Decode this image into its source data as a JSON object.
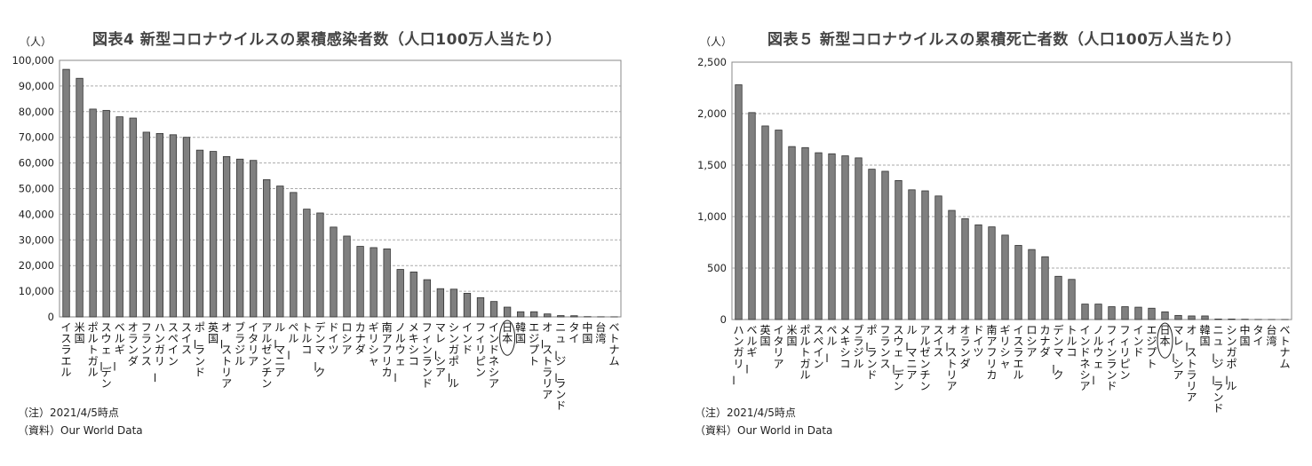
{
  "chart_data": [
    {
      "type": "bar",
      "title": "図表4 新型コロナウイルスの累積感染者数（人口100万人当たり）",
      "ylabel": "（人）",
      "ylim": [
        0,
        100000
      ],
      "yticks": [
        "0",
        "10,000",
        "20,000",
        "30,000",
        "40,000",
        "50,000",
        "60,000",
        "70,000",
        "80,000",
        "90,000",
        "100,000"
      ],
      "grid": true,
      "categories": [
        "イスラエル",
        "米国",
        "ポルトガル",
        "スウェーデン",
        "ベルギー",
        "オランダ",
        "フランス",
        "ハンガリー",
        "スペイン",
        "スイス",
        "ポーランド",
        "英国",
        "オーストリア",
        "ブラジル",
        "イタリア",
        "アルゼンチン",
        "ルーマニア",
        "ペルー",
        "トルコ",
        "デンマーク",
        "ドイツ",
        "ロシア",
        "カナダ",
        "ギリシャ",
        "南アフリカ",
        "ノルウェー",
        "メキシコ",
        "フィンランド",
        "マレーシア",
        "シンガポール",
        "インド",
        "フィリピン",
        "インドネシア",
        "日本",
        "韓国",
        "エジプト",
        "オーストラリア",
        "ニュージーランド",
        "タイ",
        "中国",
        "台湾",
        "ベトナム"
      ],
      "values": [
        96500,
        93000,
        81000,
        80500,
        78000,
        77500,
        72000,
        71500,
        71000,
        70000,
        65000,
        64500,
        62500,
        61500,
        61000,
        53500,
        51000,
        48500,
        42000,
        40500,
        35000,
        31500,
        27500,
        27000,
        26500,
        18500,
        17500,
        14500,
        11000,
        10800,
        9200,
        7500,
        6000,
        3800,
        2000,
        2000,
        1150,
        500,
        450,
        100,
        50,
        30
      ],
      "highlight": "日本",
      "note": "（注）2021/4/5時点",
      "source": "（資料）Our World Data"
    },
    {
      "type": "bar",
      "title": "図表５ 新型コロナウイルスの累積死亡者数（人口100万人当たり）",
      "ylabel": "（人）",
      "ylim": [
        0,
        2500
      ],
      "yticks": [
        "0",
        "500",
        "1,000",
        "1,500",
        "2,000",
        "2,500"
      ],
      "grid": true,
      "categories": [
        "ハンガリー",
        "ベルギー",
        "英国",
        "イタリア",
        "米国",
        "ポルトガル",
        "スペイン",
        "ペルー",
        "メキシコ",
        "ブラジル",
        "ポーランド",
        "フランス",
        "スウェーデン",
        "ルーマニア",
        "アルゼンチン",
        "スイス",
        "オーストリア",
        "オランダ",
        "ドイツ",
        "南アフリカ",
        "ギリシャ",
        "イスラエル",
        "ロシア",
        "カナダ",
        "デンマーク",
        "トルコ",
        "インドネシア",
        "ノルウェー",
        "フィンランド",
        "フィリピン",
        "インド",
        "エジプト",
        "日本",
        "マレーシア",
        "オーストラリア",
        "韓国",
        "ニュージーランド",
        "シンガポール",
        "中国",
        "タイ",
        "台湾",
        "ベトナム"
      ],
      "values": [
        2280,
        2010,
        1880,
        1840,
        1680,
        1670,
        1620,
        1610,
        1590,
        1570,
        1460,
        1440,
        1350,
        1260,
        1250,
        1200,
        1060,
        980,
        920,
        900,
        820,
        720,
        680,
        610,
        420,
        390,
        150,
        150,
        125,
        125,
        120,
        110,
        75,
        40,
        35,
        35,
        5,
        5,
        3,
        1,
        0.5,
        0.3
      ],
      "highlight": "日本",
      "note": "（注）2021/4/5時点",
      "source": "（資料）Our World in Data"
    }
  ]
}
